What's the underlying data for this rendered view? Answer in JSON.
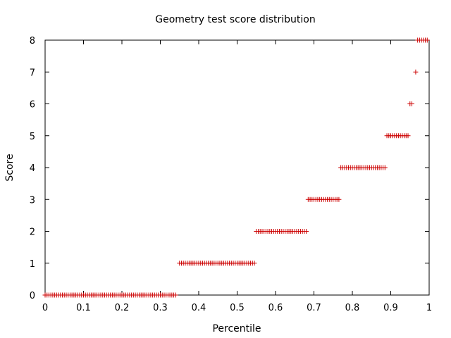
{
  "chart_data": {
    "type": "scatter",
    "title": "Geometry test score distribution",
    "xlabel": "Percentile",
    "ylabel": "Score",
    "xlim": [
      0,
      1
    ],
    "ylim": [
      0,
      8
    ],
    "x_ticks": [
      "0",
      "0.1",
      "0.2",
      "0.3",
      "0.4",
      "0.5",
      "0.6",
      "0.7",
      "0.8",
      "0.9",
      "1"
    ],
    "y_ticks": [
      "0",
      "1",
      "2",
      "3",
      "4",
      "5",
      "6",
      "7",
      "8"
    ],
    "grid": false,
    "marker": "plus",
    "marker_color": "#cc0000",
    "series": [
      {
        "runs": [
          {
            "score": 0,
            "x_start": 0.0,
            "x_end": 0.34
          },
          {
            "score": 1,
            "x_start": 0.35,
            "x_end": 0.545
          },
          {
            "score": 2,
            "x_start": 0.55,
            "x_end": 0.68
          },
          {
            "score": 3,
            "x_start": 0.685,
            "x_end": 0.765
          },
          {
            "score": 4,
            "x_start": 0.77,
            "x_end": 0.885
          },
          {
            "score": 5,
            "x_start": 0.89,
            "x_end": 0.945
          },
          {
            "score": 6,
            "x_start": 0.95,
            "x_end": 0.955
          },
          {
            "score": 7,
            "x_start": 0.965,
            "x_end": 0.965
          },
          {
            "score": 8,
            "x_start": 0.97,
            "x_end": 0.995
          }
        ],
        "x_step": 0.005
      }
    ]
  }
}
